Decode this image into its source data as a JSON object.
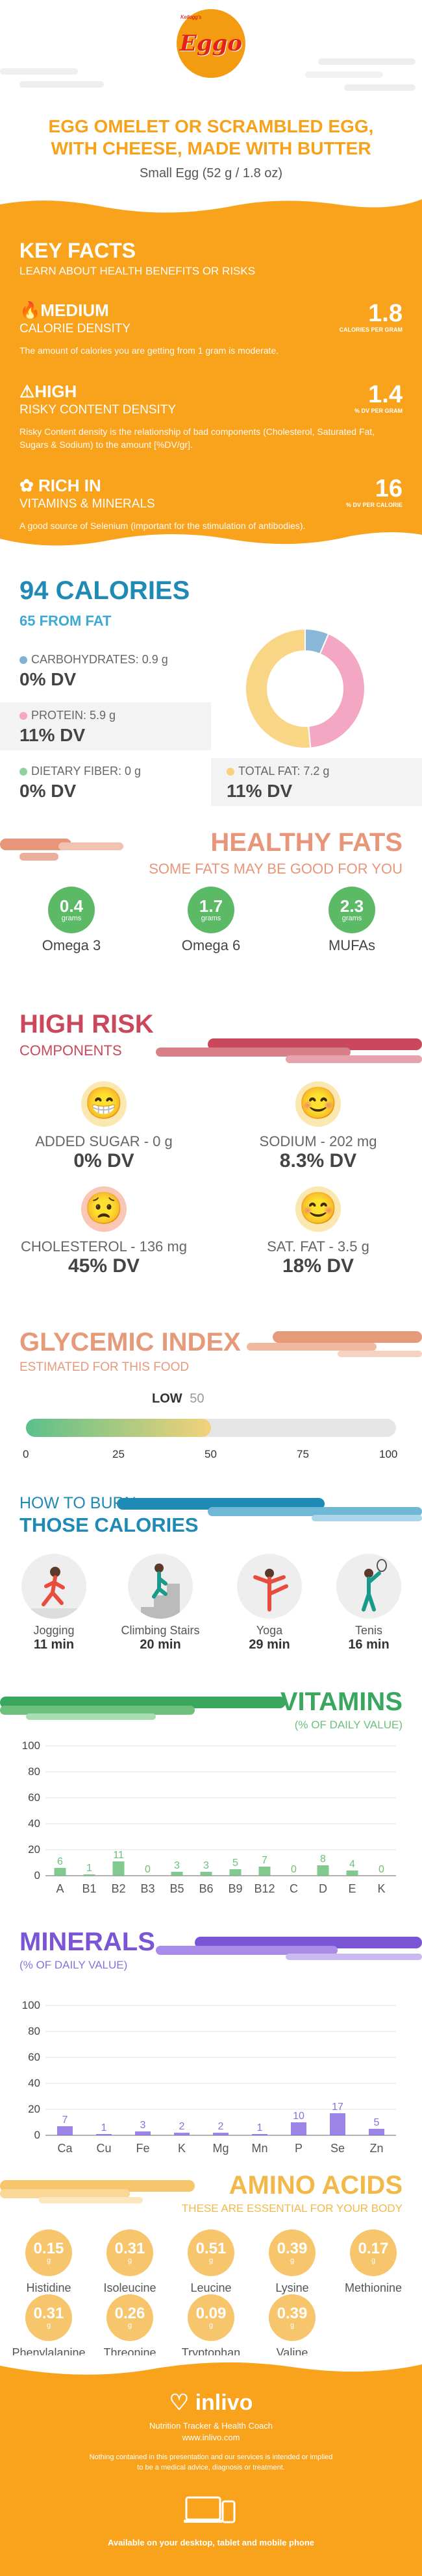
{
  "header": {
    "logo_small": "Kellogg's",
    "logo_text": "Eggo",
    "title_line1": "EGG OMELET OR SCRAMBLED EGG,",
    "title_line2": "WITH CHEESE, MADE WITH BUTTER",
    "serving": "Small Egg (52 g / 1.8 oz)"
  },
  "key_facts": {
    "title": "KEY FACTS",
    "subtitle": "LEARN ABOUT HEALTH BENEFITS OR RISKS",
    "items": [
      {
        "label": "MEDIUM",
        "sub": "CALORIE DENSITY",
        "value": "1.8",
        "unit": "CALORIES PER GRAM",
        "desc": "The amount of calories you are getting from 1 gram is moderate.",
        "icon": "fire-icon"
      },
      {
        "label": "HIGH",
        "sub": "RISKY CONTENT DENSITY",
        "value": "1.4",
        "unit": "% DV PER GRAM",
        "desc": "Risky Content density is the relationship of bad components (Cholesterol, Saturated Fat, Sugars & Sodium) to the amount [%DV/gr].",
        "icon": "warning-icon"
      },
      {
        "label": "RICH IN",
        "sub": "VITAMINS & MINERALS",
        "value": "16",
        "unit": "% DV PER CALORIE",
        "desc": "A good source of Selenium (important for the stimulation of antibodies).",
        "icon": "leaf-icon"
      }
    ]
  },
  "calories": {
    "title": "94 CALORIES",
    "subtitle": "65 FROM FAT",
    "carbs": {
      "label": "CARBOHYDRATES: 0.9 g",
      "value": "0% DV",
      "color": "#7fb3d5"
    },
    "protein": {
      "label": "PROTEIN: 5.9 g",
      "value": "11% DV",
      "color": "#f4a7c3"
    },
    "fiber": {
      "label": "DIETARY FIBER: 0 g",
      "value": "0% DV",
      "color": "#8fd19e"
    },
    "fat": {
      "label": "TOTAL FAT: 7.2 g",
      "value": "11% DV",
      "color": "#f9d27d"
    },
    "donut": [
      {
        "name": "carbohydrates",
        "value": 0.9,
        "color": "#8ab8d8"
      },
      {
        "name": "protein",
        "value": 5.9,
        "color": "#f4a7c3"
      },
      {
        "name": "fat",
        "value": 7.2,
        "color": "#f9d586"
      }
    ]
  },
  "fats": {
    "title": "HEALTHY FATS",
    "subtitle": "SOME FATS MAY BE GOOD FOR YOU",
    "items": [
      {
        "value": "0.4",
        "unit": "grams",
        "name": "Omega 3"
      },
      {
        "value": "1.7",
        "unit": "grams",
        "name": "Omega 6"
      },
      {
        "value": "2.3",
        "unit": "grams",
        "name": "MUFAs"
      }
    ]
  },
  "risk": {
    "title": "HIGH RISK",
    "subtitle": "COMPONENTS",
    "items": [
      {
        "label": "ADDED SUGAR - 0 g",
        "value": "0% DV",
        "face": "happy"
      },
      {
        "label": "SODIUM - 202 mg",
        "value": "8.3% DV",
        "face": "happy"
      },
      {
        "label": "CHOLESTEROL - 136 mg",
        "value": "45% DV",
        "face": "sad"
      },
      {
        "label": "SAT. FAT - 3.5 g",
        "value": "18% DV",
        "face": "happy"
      }
    ]
  },
  "glycemic": {
    "title": "GLYCEMIC INDEX",
    "subtitle": "ESTIMATED FOR THIS FOOD",
    "level": "LOW",
    "value": "50",
    "value_num": 50,
    "scale": [
      "0",
      "25",
      "50",
      "75",
      "100"
    ]
  },
  "burn": {
    "title_line1": "HOW TO BURN",
    "title_line2": "THOSE CALORIES",
    "activities": [
      {
        "name": "Jogging",
        "minutes": "11 min",
        "icon": "jogging-icon"
      },
      {
        "name": "Climbing Stairs",
        "minutes": "20 min",
        "icon": "stairs-icon"
      },
      {
        "name": "Yoga",
        "minutes": "29 min",
        "icon": "yoga-icon"
      },
      {
        "name": "Tenis",
        "minutes": "16 min",
        "icon": "tennis-icon"
      }
    ]
  },
  "vitamins": {
    "title": "VITAMINS",
    "subtitle": "(% OF DAILY VALUE)"
  },
  "minerals": {
    "title": "MINERALS",
    "subtitle": "(% OF DAILY VALUE)"
  },
  "chart_data": [
    {
      "type": "bar",
      "title": "VITAMINS",
      "ylabel": "(% OF DAILY VALUE)",
      "categories": [
        "A",
        "B1",
        "B2",
        "B3",
        "B5",
        "B6",
        "B9",
        "B12",
        "C",
        "D",
        "E",
        "K"
      ],
      "values": [
        6,
        1,
        11,
        0,
        3,
        3,
        5,
        7,
        0,
        8,
        4,
        0
      ],
      "ylim": [
        0,
        100
      ],
      "yticks": [
        0,
        20,
        40,
        60,
        80,
        100
      ],
      "color": "#6cc07b"
    },
    {
      "type": "bar",
      "title": "MINERALS",
      "ylabel": "(% OF DAILY VALUE)",
      "categories": [
        "Ca",
        "Cu",
        "Fe",
        "K",
        "Mg",
        "Mn",
        "P",
        "Se",
        "Zn"
      ],
      "values": [
        7,
        1,
        3,
        2,
        2,
        1,
        10,
        17,
        5
      ],
      "ylim": [
        0,
        100
      ],
      "yticks": [
        0,
        20,
        40,
        60,
        80,
        100
      ],
      "color": "#8a6fe0"
    }
  ],
  "amino": {
    "title": "AMINO ACIDS",
    "subtitle": "THESE ARE ESSENTIAL FOR YOUR BODY",
    "items": [
      {
        "value": "0.15",
        "unit": "g",
        "name": "Histidine"
      },
      {
        "value": "0.31",
        "unit": "g",
        "name": "Isoleucine"
      },
      {
        "value": "0.51",
        "unit": "g",
        "name": "Leucine"
      },
      {
        "value": "0.39",
        "unit": "g",
        "name": "Lysine"
      },
      {
        "value": "0.17",
        "unit": "g",
        "name": "Methionine"
      },
      {
        "value": "0.31",
        "unit": "g",
        "name": "Phenylalanine"
      },
      {
        "value": "0.26",
        "unit": "g",
        "name": "Threonine"
      },
      {
        "value": "0.09",
        "unit": "g",
        "name": "Tryptophan"
      },
      {
        "value": "0.39",
        "unit": "g",
        "name": "Valine"
      }
    ]
  },
  "footer": {
    "brand": "inlivo",
    "tagline": "Nutrition Tracker & Health Coach",
    "site": "www.inlivo.com",
    "disclaimer_line1": "Nothing contained in this presentation and our services is intended or implied",
    "disclaimer_line2": "to be a medical advice, diagnosis or treatment.",
    "available": "Available on your desktop, tablet and mobile phone"
  },
  "colors": {
    "orange": "#f9a21b",
    "blue": "#1f8ab5",
    "green": "#5cba67",
    "risk_red": "#c9485b",
    "fats_salmon": "#e8967a",
    "gi_salmon": "#e59a7a",
    "purple": "#8a6fe0",
    "amber": "#f7c56b"
  }
}
